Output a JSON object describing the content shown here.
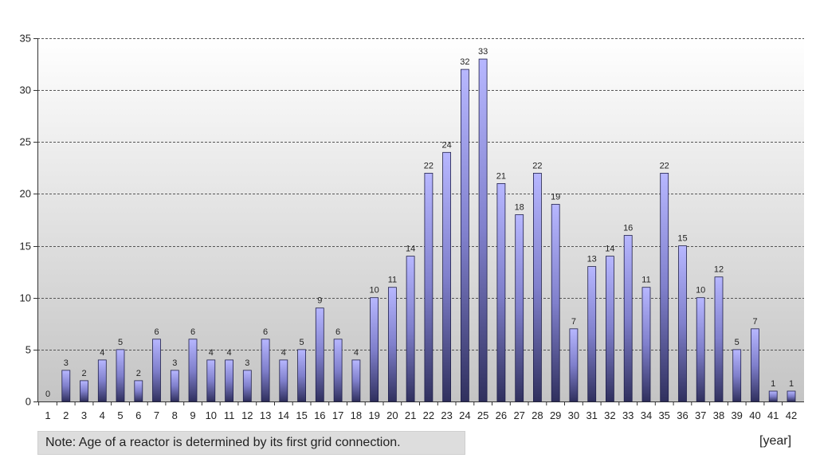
{
  "chart_data": {
    "type": "bar",
    "title": "",
    "xlabel": "",
    "ylabel": "",
    "x_unit": "[year]",
    "note": "Note: Age of a reactor is determined by its first grid connection.",
    "categories": [
      "1",
      "2",
      "3",
      "4",
      "5",
      "6",
      "7",
      "8",
      "9",
      "10",
      "11",
      "12",
      "13",
      "14",
      "15",
      "16",
      "17",
      "18",
      "19",
      "20",
      "21",
      "22",
      "23",
      "24",
      "25",
      "26",
      "27",
      "28",
      "29",
      "30",
      "31",
      "32",
      "33",
      "34",
      "35",
      "36",
      "37",
      "38",
      "39",
      "40",
      "41",
      "42"
    ],
    "values": [
      0,
      3,
      2,
      4,
      5,
      2,
      6,
      3,
      6,
      4,
      4,
      3,
      6,
      4,
      5,
      9,
      6,
      4,
      10,
      11,
      14,
      22,
      24,
      32,
      33,
      21,
      18,
      22,
      19,
      7,
      13,
      14,
      16,
      11,
      22,
      15,
      10,
      12,
      5,
      7,
      1,
      1
    ],
    "ylim": [
      0,
      35
    ],
    "yticks": [
      "0",
      "5",
      "10",
      "15",
      "20",
      "25",
      "30",
      "35"
    ],
    "grid": "horizontal dashed",
    "legend": "none",
    "colors": {
      "bar_top": "#b7b7ff",
      "bar_bottom": "#30305e",
      "bar_edge": "#1f1f4a",
      "grid": "#555555",
      "plot_bg_top": "#ffffff",
      "plot_bg_bottom": "#c4c4c4"
    }
  }
}
